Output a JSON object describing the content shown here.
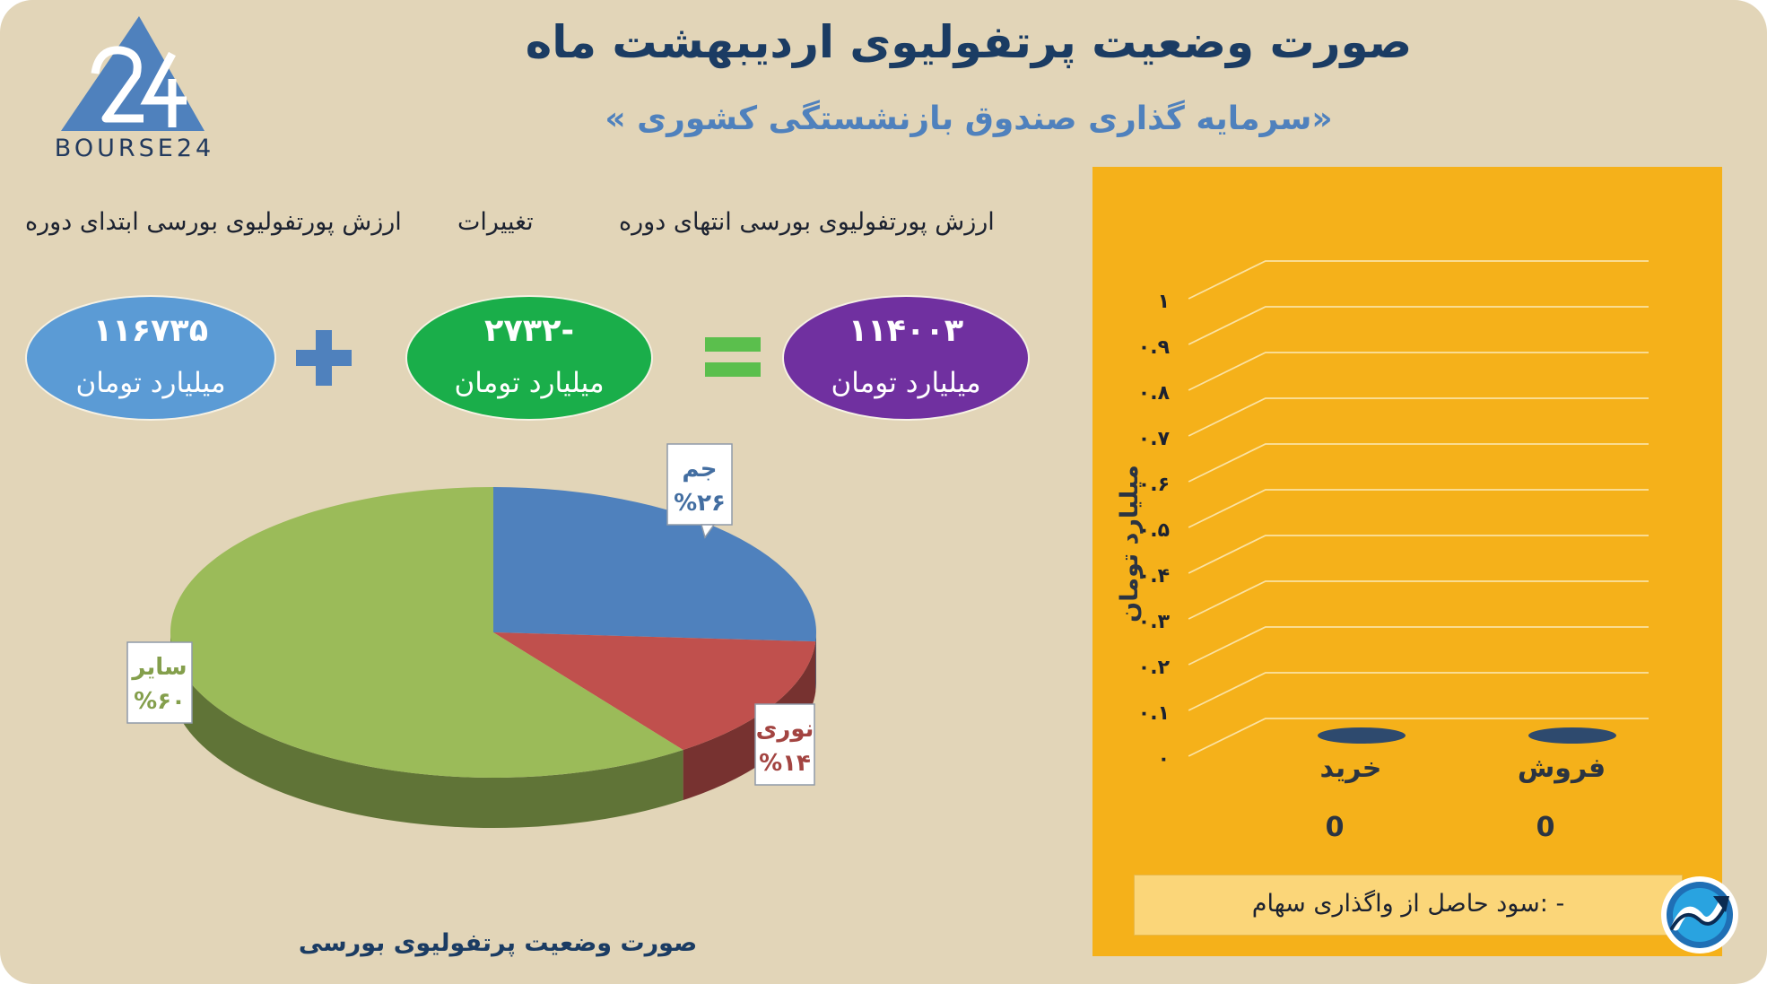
{
  "header": {
    "title": "صورت وضعیت پرتفولیوی اردیبهشت ماه",
    "subtitle": "«سرمایه گذاری صندوق بازنشستگی کشوری »"
  },
  "logo": {
    "text": "BOURSE24",
    "mark": "24",
    "color": "#4f81bd"
  },
  "summary": {
    "labels": {
      "start": "ارزش پورتفولیوی بورسی ابتدای دوره",
      "change": "تغییرات",
      "end": "ارزش پورتفولیوی بورسی انتهای دوره"
    },
    "start": {
      "value": "۱۱۶۷۳۵",
      "unit": "میلیارد تومان",
      "color": "#5b9bd5"
    },
    "change": {
      "value": "-۲۷۳۲",
      "unit": "میلیارد تومان",
      "color": "#1aae4a"
    },
    "end": {
      "value": "۱۱۴۰۰۳",
      "unit": "میلیارد تومان",
      "color": "#7030a0"
    },
    "plus_color": "#4f81bd",
    "equals_color": "#5bbf4d"
  },
  "chart_data": [
    {
      "type": "pie",
      "title": "صورت وضعیت پرتفولیوی بورسی",
      "slices": [
        {
          "name": "جم",
          "value": 26,
          "label": "%۲۶",
          "color": "#4f81bd"
        },
        {
          "name": "نوری",
          "value": 14,
          "label": "%۱۴",
          "color": "#c0504d"
        },
        {
          "name": "سایر",
          "value": 60,
          "label": "%۶۰",
          "color": "#9bbb59"
        }
      ]
    },
    {
      "type": "bar",
      "categories": [
        "خرید",
        "فروش"
      ],
      "values": [
        0,
        0
      ],
      "data_labels": [
        "0",
        "0"
      ],
      "ylabel": "میلیارد تومان",
      "ylim": [
        0,
        1
      ],
      "yticks": [
        "۰",
        "۰.۱",
        "۰.۲",
        "۰.۳",
        "۰.۴",
        "۰.۵",
        "۰.۶",
        "۰.۷",
        "۰.۸",
        "۰.۹",
        "۱"
      ],
      "grid": true,
      "bar_color": "#2e4a6e"
    }
  ],
  "profit_note": "- :سود حاصل از واگذاری سهام",
  "badge_icon": "chart-trend-arrow-icon"
}
